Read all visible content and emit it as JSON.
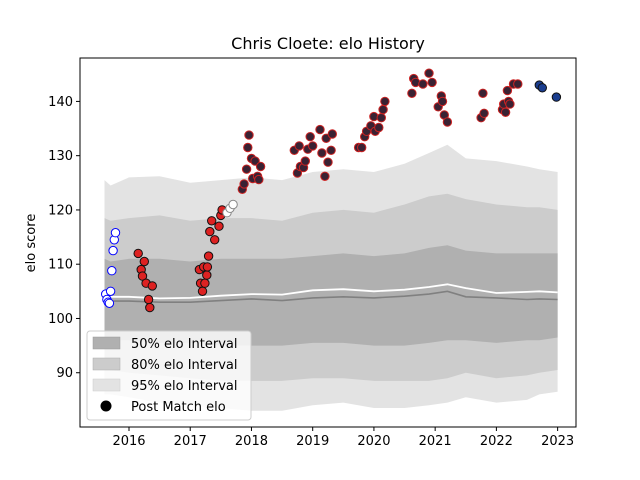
{
  "chart_data": {
    "type": "scatter",
    "title": "Chris Cloete: elo History",
    "xlabel": "",
    "ylabel": "elo score",
    "xlim": [
      2015.2,
      2023.3
    ],
    "ylim": [
      80,
      148
    ],
    "x_ticks": [
      2016,
      2017,
      2018,
      2019,
      2020,
      2021,
      2022,
      2023
    ],
    "x_tick_labels": [
      "2016",
      "2017",
      "2018",
      "2019",
      "2020",
      "2021",
      "2022",
      "2023"
    ],
    "y_ticks": [
      90,
      100,
      110,
      120,
      130,
      140
    ],
    "y_tick_labels": [
      "90",
      "100",
      "110",
      "120",
      "130",
      "140"
    ],
    "grid": false,
    "legend": {
      "placement": "lower-left",
      "entries": [
        "50% elo Interval",
        "80% elo Interval",
        "95% elo Interval",
        "Post Match elo"
      ]
    },
    "bands": [
      {
        "name": "95% elo Interval",
        "color": "#e3e3e3",
        "x": [
          2015.6,
          2015.7,
          2016.0,
          2016.5,
          2017.0,
          2017.5,
          2018.0,
          2018.5,
          2019.0,
          2019.5,
          2020.0,
          2020.5,
          2020.9,
          2021.2,
          2021.5,
          2022.0,
          2022.5,
          2022.7,
          2023.0
        ],
        "upper": [
          125.5,
          124.5,
          126.0,
          126.2,
          125.0,
          125.5,
          126.0,
          125.5,
          127.0,
          127.5,
          127.0,
          128.5,
          130.5,
          132.0,
          129.5,
          129.0,
          128.0,
          127.5,
          127.0
        ],
        "lower": [
          86.0,
          86.0,
          85.5,
          84.5,
          84.0,
          83.5,
          83.0,
          83.0,
          84.0,
          84.5,
          83.5,
          83.5,
          84.0,
          84.5,
          85.5,
          84.5,
          85.0,
          86.0,
          86.5
        ]
      },
      {
        "name": "80% elo Interval",
        "color": "#cccccc",
        "x": [
          2015.6,
          2015.7,
          2016.0,
          2016.5,
          2017.0,
          2017.5,
          2018.0,
          2018.5,
          2019.0,
          2019.5,
          2020.0,
          2020.5,
          2020.9,
          2021.2,
          2021.5,
          2022.0,
          2022.5,
          2022.7,
          2023.0
        ],
        "upper": [
          118.5,
          118.0,
          118.5,
          119.0,
          118.0,
          118.5,
          118.5,
          118.0,
          119.5,
          120.0,
          119.5,
          121.0,
          122.5,
          123.0,
          122.0,
          121.0,
          120.5,
          120.5,
          120.0
        ],
        "lower": [
          90.5,
          90.5,
          90.0,
          89.5,
          89.0,
          88.5,
          88.5,
          88.5,
          89.0,
          89.0,
          88.5,
          88.5,
          88.5,
          89.0,
          90.0,
          89.0,
          89.5,
          90.0,
          90.5
        ]
      },
      {
        "name": "50% elo Interval",
        "color": "#b0b0b0",
        "x": [
          2015.6,
          2015.7,
          2016.0,
          2016.5,
          2017.0,
          2017.5,
          2018.0,
          2018.5,
          2019.0,
          2019.5,
          2020.0,
          2020.5,
          2020.9,
          2021.2,
          2021.5,
          2022.0,
          2022.5,
          2022.7,
          2023.0
        ],
        "upper": [
          111.0,
          110.5,
          111.0,
          111.0,
          110.5,
          111.0,
          111.0,
          111.0,
          111.5,
          112.0,
          111.5,
          112.0,
          113.0,
          113.5,
          112.5,
          112.0,
          112.0,
          112.0,
          112.0
        ],
        "lower": [
          96.0,
          96.0,
          96.0,
          95.5,
          95.5,
          95.0,
          95.0,
          95.0,
          95.5,
          95.5,
          95.0,
          95.0,
          95.5,
          96.0,
          96.0,
          95.5,
          96.0,
          96.0,
          96.5
        ]
      }
    ],
    "median_line": {
      "color": "#808080",
      "x": [
        2015.6,
        2015.7,
        2016.0,
        2016.5,
        2017.0,
        2017.5,
        2018.0,
        2018.5,
        2019.0,
        2019.5,
        2020.0,
        2020.5,
        2020.9,
        2021.2,
        2021.5,
        2022.0,
        2022.5,
        2022.7,
        2023.0
      ],
      "y": [
        103.3,
        103.2,
        103.2,
        103.0,
        103.0,
        103.3,
        103.6,
        103.3,
        103.8,
        104.0,
        103.8,
        104.1,
        104.5,
        105.0,
        104.0,
        103.8,
        103.5,
        103.6,
        103.5
      ]
    },
    "mean_line": {
      "color": "#ffffff",
      "x": [
        2015.6,
        2015.7,
        2016.0,
        2016.5,
        2017.0,
        2017.5,
        2018.0,
        2018.5,
        2019.0,
        2019.5,
        2020.0,
        2020.5,
        2020.9,
        2021.2,
        2021.5,
        2022.0,
        2022.5,
        2022.7,
        2023.0
      ],
      "y": [
        104.3,
        104.0,
        104.0,
        103.7,
        103.8,
        104.2,
        104.5,
        104.4,
        105.2,
        105.4,
        105.0,
        105.3,
        105.8,
        106.3,
        105.6,
        104.7,
        104.9,
        105.0,
        104.8
      ]
    },
    "series": [
      {
        "name": "blue-open",
        "fill": "#ffffff",
        "edge": "#0000ff",
        "points": [
          [
            2015.62,
            104.5
          ],
          [
            2015.64,
            103.5
          ],
          [
            2015.66,
            103.0
          ],
          [
            2015.68,
            102.8
          ],
          [
            2015.7,
            105.0
          ],
          [
            2015.72,
            108.8
          ],
          [
            2015.74,
            112.5
          ],
          [
            2015.76,
            114.5
          ],
          [
            2015.78,
            115.8
          ]
        ]
      },
      {
        "name": "red-2016",
        "fill": "#dd2222",
        "edge": "#111111",
        "points": [
          [
            2016.15,
            112.0
          ],
          [
            2016.2,
            109.0
          ],
          [
            2016.22,
            107.8
          ],
          [
            2016.25,
            110.5
          ],
          [
            2016.28,
            106.5
          ],
          [
            2016.32,
            103.5
          ],
          [
            2016.34,
            102.0
          ],
          [
            2016.38,
            106.0
          ]
        ]
      },
      {
        "name": "red-2017",
        "fill": "#dd2222",
        "edge": "#111111",
        "points": [
          [
            2017.15,
            109.0
          ],
          [
            2017.17,
            106.5
          ],
          [
            2017.2,
            105.0
          ],
          [
            2017.22,
            109.5
          ],
          [
            2017.24,
            106.5
          ],
          [
            2017.27,
            108.0
          ],
          [
            2017.28,
            109.5
          ],
          [
            2017.3,
            111.5
          ],
          [
            2017.32,
            116.0
          ],
          [
            2017.35,
            118.0
          ],
          [
            2017.4,
            114.5
          ],
          [
            2017.47,
            117.0
          ],
          [
            2017.5,
            119.0
          ],
          [
            2017.52,
            120.0
          ]
        ]
      },
      {
        "name": "light-open",
        "fill": "#ffffff",
        "edge": "#888888",
        "points": [
          [
            2017.6,
            119.5
          ],
          [
            2017.65,
            120.3
          ],
          [
            2017.7,
            121.0
          ]
        ]
      },
      {
        "name": "purple-cluster",
        "fill": "#3a2233",
        "edge": "#cc2222",
        "points": [
          [
            2017.85,
            123.8
          ],
          [
            2017.88,
            124.8
          ],
          [
            2017.92,
            127.5
          ],
          [
            2017.94,
            131.5
          ],
          [
            2017.96,
            133.8
          ],
          [
            2018.0,
            129.5
          ],
          [
            2018.02,
            125.8
          ],
          [
            2018.06,
            129.0
          ],
          [
            2018.1,
            126.2
          ],
          [
            2018.12,
            125.6
          ],
          [
            2018.15,
            128.0
          ],
          [
            2018.7,
            131.0
          ],
          [
            2018.75,
            126.8
          ],
          [
            2018.78,
            131.8
          ],
          [
            2018.8,
            128.0
          ],
          [
            2018.85,
            127.8
          ],
          [
            2018.88,
            129.0
          ],
          [
            2018.92,
            131.2
          ],
          [
            2018.96,
            133.5
          ],
          [
            2019.0,
            131.8
          ],
          [
            2019.12,
            134.8
          ],
          [
            2019.15,
            130.5
          ],
          [
            2019.2,
            126.2
          ],
          [
            2019.22,
            133.2
          ],
          [
            2019.25,
            128.8
          ],
          [
            2019.3,
            131.0
          ],
          [
            2019.32,
            134.0
          ],
          [
            2019.75,
            131.5
          ],
          [
            2019.8,
            131.5
          ],
          [
            2019.85,
            133.5
          ],
          [
            2019.88,
            134.5
          ],
          [
            2019.95,
            135.5
          ],
          [
            2020.0,
            137.2
          ],
          [
            2020.02,
            134.5
          ],
          [
            2020.08,
            135.2
          ],
          [
            2020.12,
            137.0
          ],
          [
            2020.15,
            138.5
          ],
          [
            2020.18,
            140.0
          ],
          [
            2020.62,
            141.5
          ],
          [
            2020.65,
            144.2
          ],
          [
            2020.68,
            143.5
          ],
          [
            2020.8,
            143.2
          ],
          [
            2020.9,
            145.2
          ],
          [
            2020.95,
            143.5
          ],
          [
            2021.05,
            139.0
          ],
          [
            2021.1,
            141.0
          ],
          [
            2021.12,
            140.0
          ],
          [
            2021.15,
            137.5
          ],
          [
            2021.2,
            136.2
          ],
          [
            2021.75,
            137.0
          ],
          [
            2021.78,
            141.5
          ],
          [
            2021.8,
            137.8
          ],
          [
            2022.1,
            138.5
          ],
          [
            2022.12,
            139.5
          ],
          [
            2022.15,
            138.0
          ],
          [
            2022.18,
            142.0
          ],
          [
            2022.2,
            140.0
          ],
          [
            2022.22,
            139.5
          ],
          [
            2022.28,
            143.2
          ],
          [
            2022.35,
            143.2
          ]
        ]
      },
      {
        "name": "navy-recent",
        "fill": "#1a3d8f",
        "edge": "#111111",
        "points": [
          [
            2022.7,
            143.0
          ],
          [
            2022.75,
            142.5
          ],
          [
            2022.98,
            140.8
          ]
        ]
      }
    ]
  }
}
